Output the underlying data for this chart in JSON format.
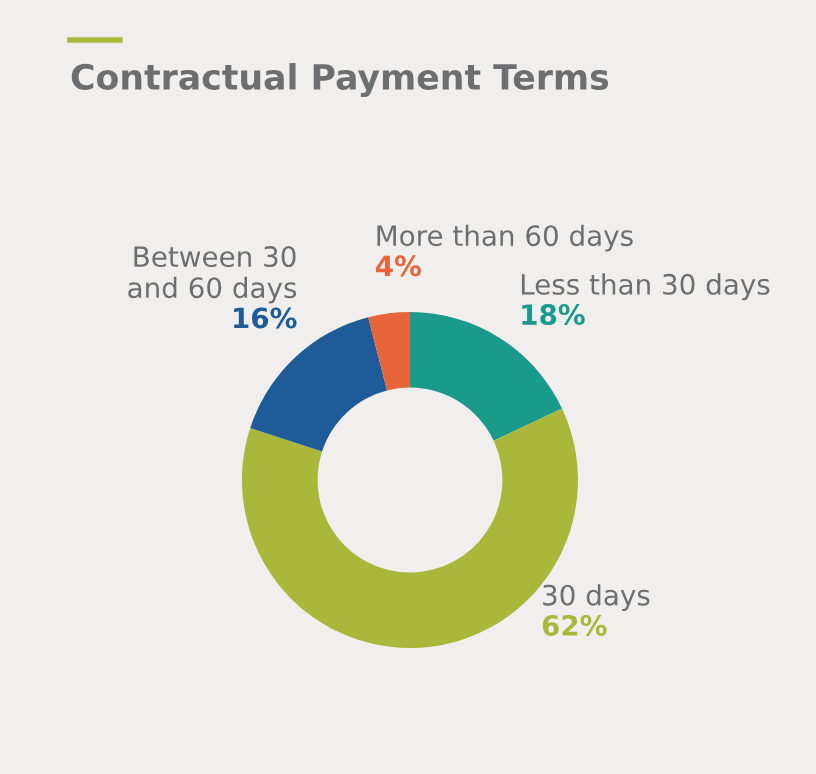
{
  "chart_data": {
    "type": "donut",
    "title": "Contractual Payment Terms",
    "categories": [
      "Less than 30 days",
      "30 days",
      "Between 30\nand 60 days",
      "More than 60 days"
    ],
    "values": [
      18,
      62,
      16,
      4
    ],
    "value_labels": [
      "18%",
      "62%",
      "16%",
      "4%"
    ],
    "colors": [
      "#1a9a8b",
      "#a9b73a",
      "#1f5b98",
      "#e8643a"
    ],
    "legend": false
  }
}
